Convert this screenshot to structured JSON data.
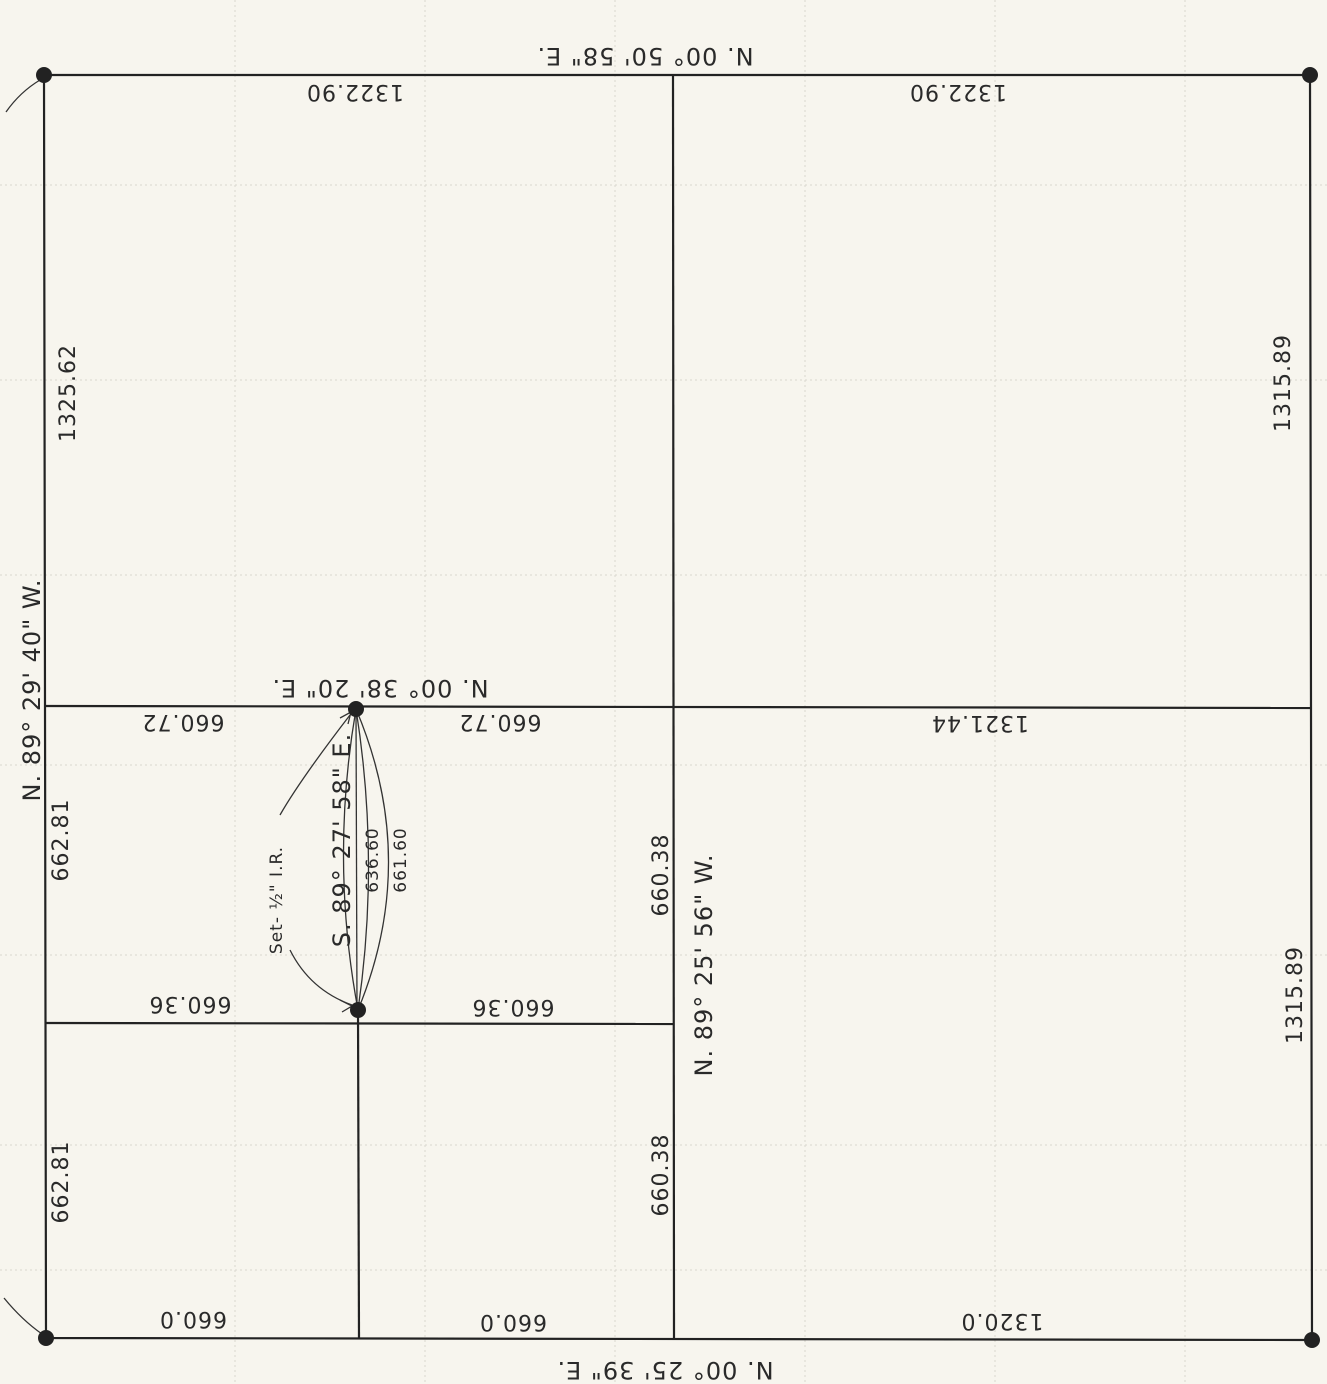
{
  "bearings": {
    "north": "N. 00° 50' 58\" E.",
    "south": "N. 00° 25' 39\" E.",
    "west": "N. 89° 29' 40\" W.",
    "middle_horizontal": "N. 00° 38' 20\" E.",
    "center_vertical": "N. 89° 25' 56\" W.",
    "inner": "S. 89° 27' 58\" E."
  },
  "distances": {
    "top_left": "1322.90",
    "top_right": "1322.90",
    "left_upper": "1325.62",
    "right_upper": "1315.89",
    "right_lower": "1315.89",
    "mid_left_a": "660.72",
    "mid_left_b": "660.72",
    "mid_right": "1321.44",
    "left_mid": "662.81",
    "left_low": "662.81",
    "quarter_left": "660.36",
    "quarter_right": "660.36",
    "center_upper": "660.38",
    "center_lower": "660.38",
    "bottom_left": "660.0",
    "bottom_mid": "660.0",
    "bottom_right": "1320.0",
    "inner_a": "636.60",
    "inner_b": "661.60"
  },
  "notes": {
    "set_pin": "Set- ½\" I.R."
  }
}
